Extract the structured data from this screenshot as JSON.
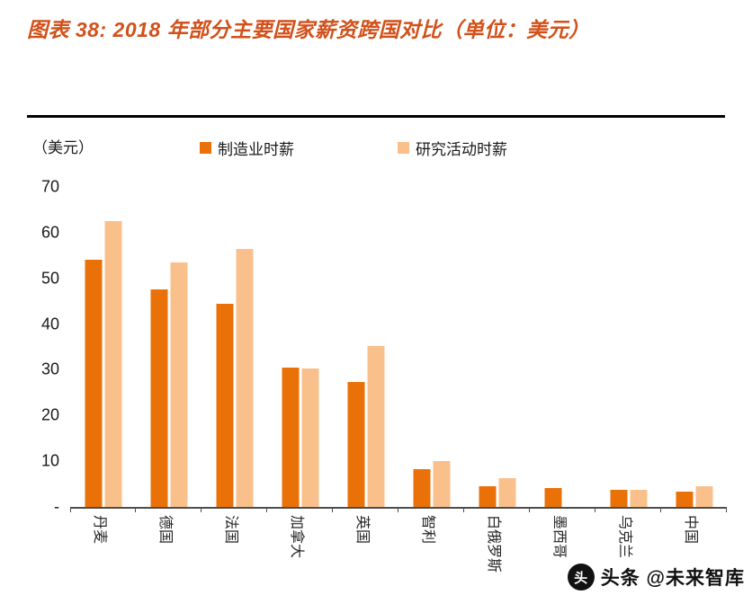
{
  "title": "图表 38: 2018 年部分主要国家薪资跨国对比（单位：美元）",
  "axis_unit": "（美元）",
  "legend": [
    {
      "label": "制造业时薪",
      "color": "#e97108"
    },
    {
      "label": "研究活动时薪",
      "color": "#f9c08c"
    }
  ],
  "watermark": {
    "text": "头条 @未来智库",
    "icon": "toutiao-logo"
  },
  "chart_data": {
    "type": "bar",
    "title": "2018 年部分主要国家薪资跨国对比（单位：美元）",
    "xlabel": "",
    "ylabel": "（美元）",
    "ylim": [
      0,
      70
    ],
    "yticks": [
      "70",
      "60",
      "50",
      "40",
      "30",
      "20",
      "10",
      "-"
    ],
    "grid": false,
    "legend_position": "top-center",
    "categories": [
      "丹麦",
      "德国",
      "法国",
      "加拿大",
      "英国",
      "智利",
      "白俄罗斯",
      "墨西哥",
      "乌克兰",
      "中国"
    ],
    "series": [
      {
        "name": "制造业时薪",
        "color": "#e97108",
        "values": [
          54,
          47.5,
          44.5,
          30.5,
          27.3,
          8.3,
          4.6,
          4.2,
          3.8,
          3.3
        ]
      },
      {
        "name": "研究活动时薪",
        "color": "#f9c08c",
        "values": [
          62.5,
          53.5,
          56.5,
          30.3,
          35.2,
          10,
          6.3,
          0,
          3.8,
          4.6
        ]
      }
    ]
  }
}
